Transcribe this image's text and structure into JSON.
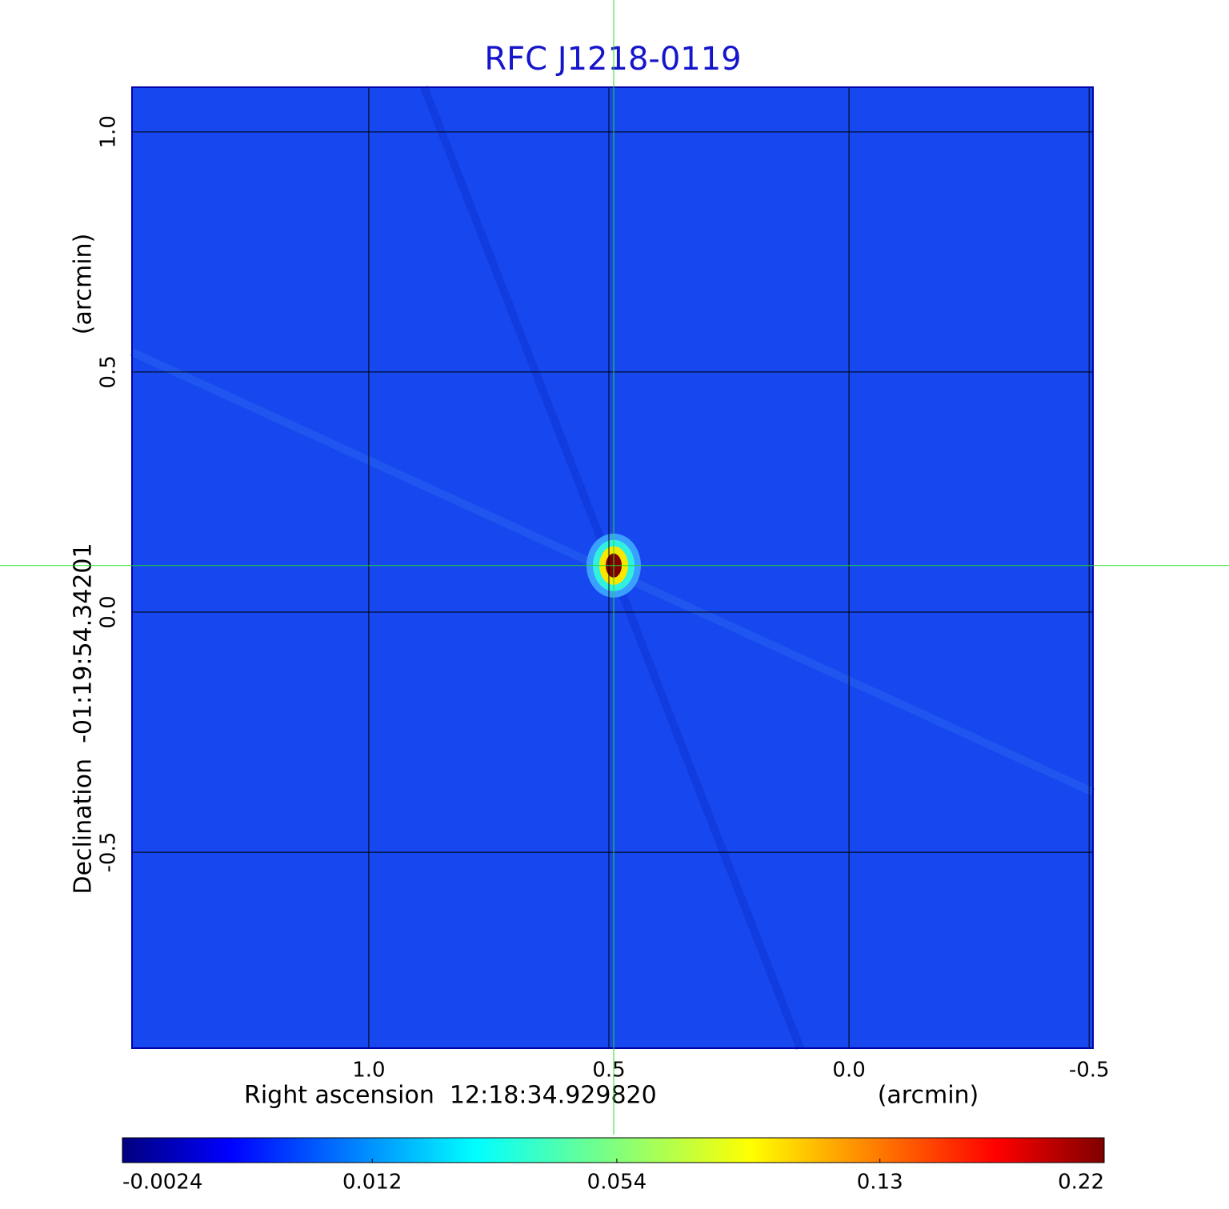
{
  "chart_data": {
    "type": "image",
    "title": "RFC J1218-0119",
    "x_label": "Right ascension  12:18:34.929820",
    "x_unit": "(arcmin)",
    "y_label": "Declination  -01:19:54.34201",
    "y_unit": "(arcmin)",
    "xlim": [
      1.493,
      -0.508
    ],
    "xticks": [
      {
        "value": 1,
        "label": "1.0"
      },
      0.5,
      {
        "value": 0,
        "label": "0.0"
      },
      -0.5
    ],
    "ylim": [
      -0.908,
      1.093
    ],
    "yticks": [
      {
        "value": 1,
        "label": "1.0"
      },
      0.5,
      {
        "value": 0,
        "label": "0.0"
      },
      -0.5
    ],
    "grid": true,
    "background_color": "#1747ee",
    "crosshair": {
      "x": 0.49,
      "y": 0.097,
      "color": "#22dd22"
    },
    "peak": {
      "x": 0.49,
      "y": 0.097,
      "value": 0.22
    },
    "colormap": "jet",
    "colorbar_scale": "sqrt",
    "clim": [
      -0.0024,
      0.22
    ],
    "colorbar_ticks": [
      -0.0024,
      0.012,
      0.054,
      0.13,
      0.22
    ]
  }
}
